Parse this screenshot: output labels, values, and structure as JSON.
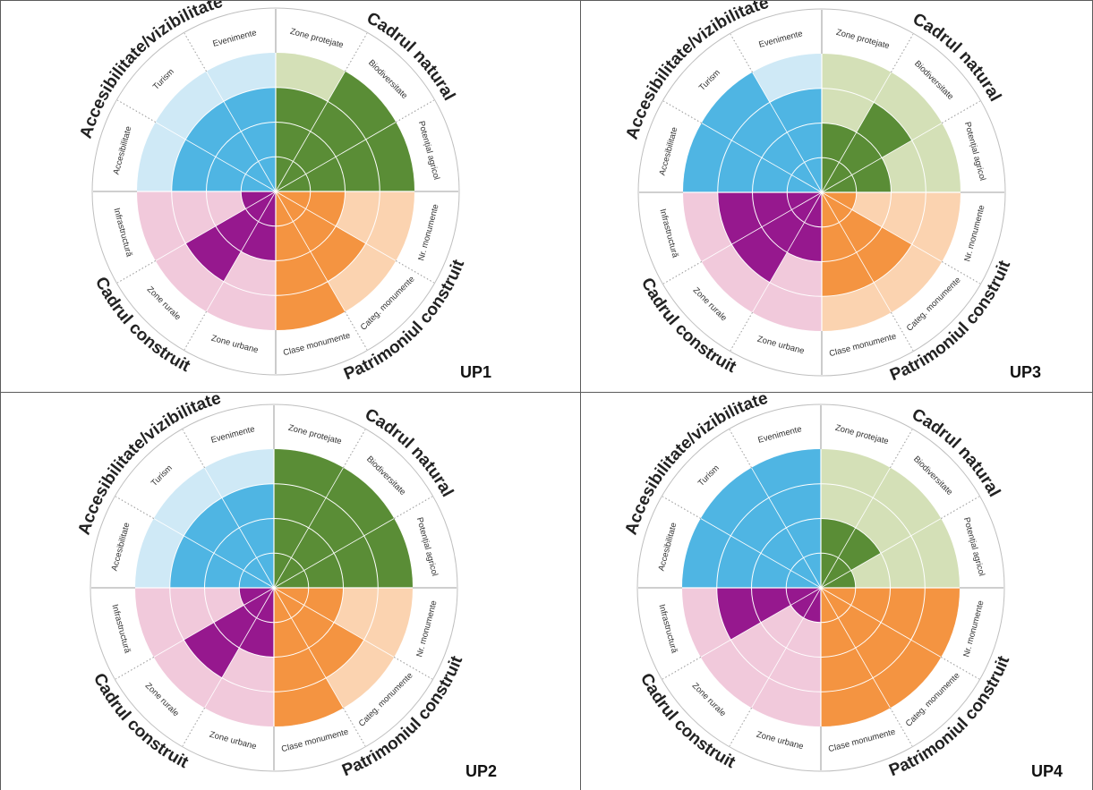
{
  "chart_data": [
    {
      "type": "polar-area",
      "label": "UP1",
      "segments": [
        {
          "name": "Zone protejate",
          "category": "Cadrul natural",
          "value": 3,
          "max": 4
        },
        {
          "name": "Biodiversitate",
          "category": "Cadrul natural",
          "value": 4,
          "max": 4
        },
        {
          "name": "Potențial agricol",
          "category": "Cadrul natural",
          "value": 4,
          "max": 4
        },
        {
          "name": "Nr. monumente",
          "category": "Patrimoniul construit",
          "value": 2,
          "max": 4
        },
        {
          "name": "Categ. monumente",
          "category": "Patrimoniul construit",
          "value": 3,
          "max": 4
        },
        {
          "name": "Clase monumente",
          "category": "Patrimoniul construit",
          "value": 4,
          "max": 4
        },
        {
          "name": "Zone urbane",
          "category": "Cadrul construit",
          "value": 2,
          "max": 4
        },
        {
          "name": "Zone rurale",
          "category": "Cadrul construit",
          "value": 3,
          "max": 4
        },
        {
          "name": "Infrastructură",
          "category": "Cadrul construit",
          "value": 1,
          "max": 4
        },
        {
          "name": "Accesibilitate",
          "category": "Accesibilitate/vizibilitate",
          "value": 3,
          "max": 4
        },
        {
          "name": "Turism",
          "category": "Accesibilitate/vizibilitate",
          "value": 3,
          "max": 4
        },
        {
          "name": "Evenimente",
          "category": "Accesibilitate/vizibilitate",
          "value": 3,
          "max": 4
        }
      ]
    },
    {
      "type": "polar-area",
      "label": "UP3",
      "segments": [
        {
          "name": "Zone protejate",
          "category": "Cadrul natural",
          "value": 2,
          "max": 4
        },
        {
          "name": "Biodiversitate",
          "category": "Cadrul natural",
          "value": 3,
          "max": 4
        },
        {
          "name": "Potențial agricol",
          "category": "Cadrul natural",
          "value": 2,
          "max": 4
        },
        {
          "name": "Nr. monumente",
          "category": "Patrimoniul construit",
          "value": 1,
          "max": 4
        },
        {
          "name": "Categ. monumente",
          "category": "Patrimoniul construit",
          "value": 3,
          "max": 4
        },
        {
          "name": "Clase monumente",
          "category": "Patrimoniul construit",
          "value": 3,
          "max": 4
        },
        {
          "name": "Zone urbane",
          "category": "Cadrul construit",
          "value": 2,
          "max": 4
        },
        {
          "name": "Zone rurale",
          "category": "Cadrul construit",
          "value": 3,
          "max": 4
        },
        {
          "name": "Infrastructură",
          "category": "Cadrul construit",
          "value": 3,
          "max": 4
        },
        {
          "name": "Accesibilitate",
          "category": "Accesibilitate/vizibilitate",
          "value": 4,
          "max": 4
        },
        {
          "name": "Turism",
          "category": "Accesibilitate/vizibilitate",
          "value": 4,
          "max": 4
        },
        {
          "name": "Evenimente",
          "category": "Accesibilitate/vizibilitate",
          "value": 3,
          "max": 4
        }
      ]
    },
    {
      "type": "polar-area",
      "label": "UP2",
      "segments": [
        {
          "name": "Zone protejate",
          "category": "Cadrul natural",
          "value": 4,
          "max": 4
        },
        {
          "name": "Biodiversitate",
          "category": "Cadrul natural",
          "value": 4,
          "max": 4
        },
        {
          "name": "Potențial agricol",
          "category": "Cadrul natural",
          "value": 4,
          "max": 4
        },
        {
          "name": "Nr. monumente",
          "category": "Patrimoniul construit",
          "value": 2,
          "max": 4
        },
        {
          "name": "Categ. monumente",
          "category": "Patrimoniul construit",
          "value": 3,
          "max": 4
        },
        {
          "name": "Clase monumente",
          "category": "Patrimoniul construit",
          "value": 4,
          "max": 4
        },
        {
          "name": "Zone urbane",
          "category": "Cadrul construit",
          "value": 2,
          "max": 4
        },
        {
          "name": "Zone rurale",
          "category": "Cadrul construit",
          "value": 3,
          "max": 4
        },
        {
          "name": "Infrastructură",
          "category": "Cadrul construit",
          "value": 1,
          "max": 4
        },
        {
          "name": "Accesibilitate",
          "category": "Accesibilitate/vizibilitate",
          "value": 3,
          "max": 4
        },
        {
          "name": "Turism",
          "category": "Accesibilitate/vizibilitate",
          "value": 3,
          "max": 4
        },
        {
          "name": "Evenimente",
          "category": "Accesibilitate/vizibilitate",
          "value": 3,
          "max": 4
        }
      ]
    },
    {
      "type": "polar-area",
      "label": "UP4",
      "segments": [
        {
          "name": "Zone protejate",
          "category": "Cadrul natural",
          "value": 2,
          "max": 4
        },
        {
          "name": "Biodiversitate",
          "category": "Cadrul natural",
          "value": 2,
          "max": 4
        },
        {
          "name": "Potențial agricol",
          "category": "Cadrul natural",
          "value": 1,
          "max": 4
        },
        {
          "name": "Nr. monumente",
          "category": "Patrimoniul construit",
          "value": 4,
          "max": 4
        },
        {
          "name": "Categ. monumente",
          "category": "Patrimoniul construit",
          "value": 4,
          "max": 4
        },
        {
          "name": "Clase monumente",
          "category": "Patrimoniul construit",
          "value": 4,
          "max": 4
        },
        {
          "name": "Zone urbane",
          "category": "Cadrul construit",
          "value": 1,
          "max": 4
        },
        {
          "name": "Zone rurale",
          "category": "Cadrul construit",
          "value": 1,
          "max": 4
        },
        {
          "name": "Infrastructură",
          "category": "Cadrul construit",
          "value": 3,
          "max": 4
        },
        {
          "name": "Accesibilitate",
          "category": "Accesibilitate/vizibilitate",
          "value": 4,
          "max": 4
        },
        {
          "name": "Turism",
          "category": "Accesibilitate/vizibilitate",
          "value": 4,
          "max": 4
        },
        {
          "name": "Evenimente",
          "category": "Accesibilitate/vizibilitate",
          "value": 4,
          "max": 4
        }
      ]
    }
  ],
  "colors": {
    "Cadrul natural": {
      "dark": "#5a8d36",
      "light": "#d4e0b7"
    },
    "Patrimoniul construit": {
      "dark": "#f49441",
      "light": "#fbd3b0"
    },
    "Cadrul construit": {
      "dark": "#96188e",
      "light": "#f1c9db"
    },
    "Accesibilitate/vizibilitate": {
      "dark": "#4fb5e3",
      "light": "#cfe9f6"
    },
    "ring": "#bfbfbf",
    "divider": "#7f7f7f"
  }
}
